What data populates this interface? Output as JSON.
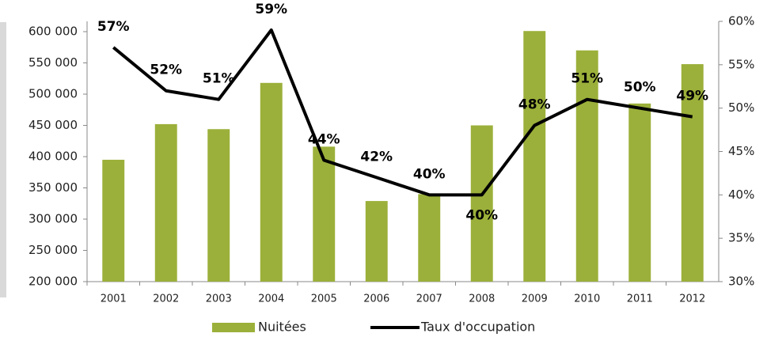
{
  "chart_data": {
    "type": "bar_line",
    "categories": [
      "2001",
      "2002",
      "2003",
      "2004",
      "2005",
      "2006",
      "2007",
      "2008",
      "2009",
      "2010",
      "2011",
      "2012"
    ],
    "series": [
      {
        "name": "Nuitées",
        "type": "bar",
        "color": "#9bb03a",
        "axis": "y",
        "values": [
          395000,
          452000,
          444000,
          518000,
          416000,
          329000,
          340000,
          450000,
          601000,
          570000,
          485000,
          548000
        ]
      },
      {
        "name": "Taux d'occupation",
        "type": "line",
        "color": "#000000",
        "axis": "y2",
        "values": [
          57,
          52,
          51,
          59,
          44,
          42,
          40,
          40,
          48,
          51,
          50,
          49
        ],
        "value_labels": [
          "57%",
          "52%",
          "51%",
          "59%",
          "44%",
          "42%",
          "40%",
          "40%",
          "48%",
          "51%",
          "50%",
          "49%"
        ]
      }
    ],
    "ylim": [
      200000,
      600000
    ],
    "yticks": [
      {
        "value": 200000,
        "label": "200 000"
      },
      {
        "value": 250000,
        "label": "250 000"
      },
      {
        "value": 300000,
        "label": "300 000"
      },
      {
        "value": 350000,
        "label": "350 000"
      },
      {
        "value": 400000,
        "label": "400 000"
      },
      {
        "value": 450000,
        "label": "450 000"
      },
      {
        "value": 500000,
        "label": "500 000"
      },
      {
        "value": 550000,
        "label": "550 000"
      },
      {
        "value": 600000,
        "label": "600 000"
      }
    ],
    "y2lim": [
      30,
      60
    ],
    "y2ticks": [
      {
        "value": 30,
        "label": "30%"
      },
      {
        "value": 35,
        "label": "35%"
      },
      {
        "value": 40,
        "label": "40%"
      },
      {
        "value": 45,
        "label": "45%"
      },
      {
        "value": 50,
        "label": "50%"
      },
      {
        "value": 55,
        "label": "55%"
      },
      {
        "value": 60,
        "label": "60%"
      }
    ],
    "legend": "bottom"
  }
}
